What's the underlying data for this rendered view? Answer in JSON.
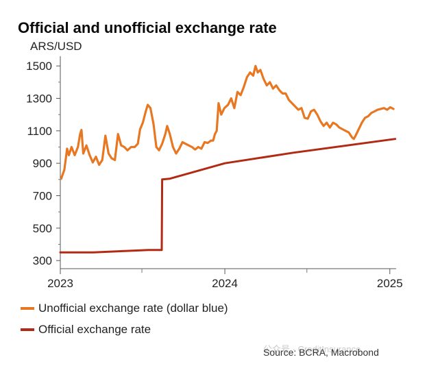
{
  "chart_data": {
    "type": "line",
    "title": "Official and unofficial exchange rate",
    "unit_label": "ARS/USD",
    "ylim": [
      250,
      1560
    ],
    "y_ticks": [
      300,
      500,
      700,
      900,
      1100,
      1300,
      1500
    ],
    "x_range": [
      "2023-01-01",
      "2025-01-15"
    ],
    "x_ticks": [
      {
        "label": "2023",
        "date": "2023-01-01"
      },
      {
        "label": "2024",
        "date": "2024-01-01"
      },
      {
        "label": "2025",
        "date": "2025-01-01"
      }
    ],
    "legend_position": "bottom-left",
    "series": [
      {
        "name": "Unofficial exchange rate (dollar blue)",
        "color": "#E87722",
        "points": [
          [
            "2023-01-03",
            805
          ],
          [
            "2023-01-10",
            860
          ],
          [
            "2023-01-16",
            990
          ],
          [
            "2023-01-20",
            950
          ],
          [
            "2023-01-26",
            1000
          ],
          [
            "2023-02-02",
            950
          ],
          [
            "2023-02-09",
            1000
          ],
          [
            "2023-02-14",
            1080
          ],
          [
            "2023-02-17",
            1105
          ],
          [
            "2023-02-21",
            960
          ],
          [
            "2023-02-28",
            1010
          ],
          [
            "2023-03-07",
            950
          ],
          [
            "2023-03-14",
            905
          ],
          [
            "2023-03-21",
            940
          ],
          [
            "2023-03-28",
            890
          ],
          [
            "2023-04-04",
            920
          ],
          [
            "2023-04-11",
            1070
          ],
          [
            "2023-04-18",
            960
          ],
          [
            "2023-04-25",
            930
          ],
          [
            "2023-05-02",
            920
          ],
          [
            "2023-05-09",
            1080
          ],
          [
            "2023-05-16",
            1010
          ],
          [
            "2023-05-23",
            1000
          ],
          [
            "2023-05-30",
            980
          ],
          [
            "2023-06-07",
            1000
          ],
          [
            "2023-06-15",
            1000
          ],
          [
            "2023-06-22",
            1020
          ],
          [
            "2023-06-27",
            1110
          ],
          [
            "2023-07-03",
            1150
          ],
          [
            "2023-07-10",
            1225
          ],
          [
            "2023-07-14",
            1260
          ],
          [
            "2023-07-20",
            1240
          ],
          [
            "2023-07-27",
            1140
          ],
          [
            "2023-08-02",
            1000
          ],
          [
            "2023-08-08",
            980
          ],
          [
            "2023-08-15",
            1020
          ],
          [
            "2023-08-22",
            1080
          ],
          [
            "2023-08-26",
            1130
          ],
          [
            "2023-09-01",
            1080
          ],
          [
            "2023-09-08",
            1000
          ],
          [
            "2023-09-15",
            960
          ],
          [
            "2023-09-22",
            990
          ],
          [
            "2023-09-29",
            1030
          ],
          [
            "2023-10-06",
            1020
          ],
          [
            "2023-10-13",
            1010
          ],
          [
            "2023-10-20",
            1000
          ],
          [
            "2023-10-27",
            985
          ],
          [
            "2023-11-03",
            1000
          ],
          [
            "2023-11-10",
            990
          ],
          [
            "2023-11-17",
            1030
          ],
          [
            "2023-11-24",
            1025
          ],
          [
            "2023-12-01",
            1040
          ],
          [
            "2023-12-06",
            1040
          ],
          [
            "2023-12-10",
            1080
          ],
          [
            "2023-12-14",
            1100
          ],
          [
            "2023-12-18",
            1270
          ],
          [
            "2023-12-24",
            1200
          ],
          [
            "2023-12-31",
            1240
          ],
          [
            "2024-01-08",
            1260
          ],
          [
            "2024-01-15",
            1300
          ],
          [
            "2024-01-22",
            1240
          ],
          [
            "2024-01-29",
            1340
          ],
          [
            "2024-02-05",
            1320
          ],
          [
            "2024-02-12",
            1370
          ],
          [
            "2024-02-19",
            1430
          ],
          [
            "2024-02-26",
            1460
          ],
          [
            "2024-03-04",
            1440
          ],
          [
            "2024-03-09",
            1500
          ],
          [
            "2024-03-14",
            1460
          ],
          [
            "2024-03-20",
            1475
          ],
          [
            "2024-03-27",
            1420
          ],
          [
            "2024-04-03",
            1380
          ],
          [
            "2024-04-10",
            1400
          ],
          [
            "2024-04-17",
            1360
          ],
          [
            "2024-04-24",
            1380
          ],
          [
            "2024-05-01",
            1350
          ],
          [
            "2024-05-08",
            1330
          ],
          [
            "2024-05-15",
            1330
          ],
          [
            "2024-05-22",
            1290
          ],
          [
            "2024-05-29",
            1270
          ],
          [
            "2024-06-05",
            1250
          ],
          [
            "2024-06-12",
            1230
          ],
          [
            "2024-06-19",
            1240
          ],
          [
            "2024-06-26",
            1180
          ],
          [
            "2024-07-03",
            1175
          ],
          [
            "2024-07-10",
            1220
          ],
          [
            "2024-07-17",
            1230
          ],
          [
            "2024-07-24",
            1200
          ],
          [
            "2024-07-31",
            1160
          ],
          [
            "2024-08-07",
            1130
          ],
          [
            "2024-08-14",
            1150
          ],
          [
            "2024-08-21",
            1120
          ],
          [
            "2024-08-28",
            1150
          ],
          [
            "2024-09-04",
            1140
          ],
          [
            "2024-09-11",
            1120
          ],
          [
            "2024-09-18",
            1110
          ],
          [
            "2024-09-25",
            1100
          ],
          [
            "2024-10-02",
            1090
          ],
          [
            "2024-10-09",
            1060
          ],
          [
            "2024-10-13",
            1050
          ],
          [
            "2024-10-17",
            1070
          ],
          [
            "2024-10-24",
            1110
          ],
          [
            "2024-10-31",
            1150
          ],
          [
            "2024-11-07",
            1180
          ],
          [
            "2024-11-14",
            1190
          ],
          [
            "2024-11-21",
            1210
          ],
          [
            "2024-11-28",
            1220
          ],
          [
            "2024-12-05",
            1230
          ],
          [
            "2024-12-12",
            1235
          ],
          [
            "2024-12-19",
            1240
          ],
          [
            "2024-12-26",
            1230
          ],
          [
            "2025-01-02",
            1245
          ],
          [
            "2025-01-09",
            1235
          ]
        ]
      },
      {
        "name": "Official exchange rate",
        "color": "#B22A14",
        "points": [
          [
            "2023-01-01",
            350
          ],
          [
            "2023-03-15",
            350
          ],
          [
            "2023-07-15",
            365
          ],
          [
            "2023-08-14",
            365
          ],
          [
            "2023-08-15",
            800
          ],
          [
            "2023-09-01",
            805
          ],
          [
            "2024-01-01",
            900
          ],
          [
            "2024-06-01",
            965
          ],
          [
            "2025-01-13",
            1050
          ]
        ]
      }
    ],
    "source": "Source: BCRA, Macrobond",
    "watermark": "公众号 · CreditInsurance"
  }
}
